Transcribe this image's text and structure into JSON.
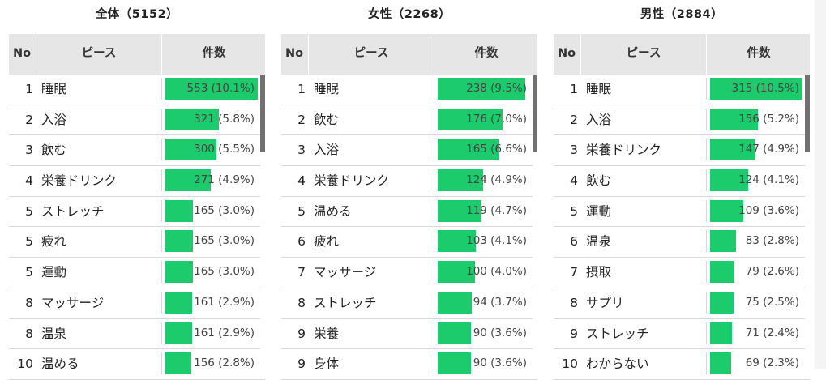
{
  "panels": [
    {
      "title": "全体（5152）",
      "headers": {
        "no": "No",
        "piece": "ピース",
        "count": "件数"
      },
      "rows": [
        {
          "no": "1",
          "piece": "睡眠",
          "count": "553 (10.1%)",
          "share": 0.101
        },
        {
          "no": "2",
          "piece": "入浴",
          "count": "321 (5.8%)",
          "share": 0.058
        },
        {
          "no": "3",
          "piece": "飲む",
          "count": "300 (5.5%)",
          "share": 0.055
        },
        {
          "no": "4",
          "piece": "栄養ドリンク",
          "count": "271 (4.9%)",
          "share": 0.049
        },
        {
          "no": "5",
          "piece": "ストレッチ",
          "count": "165 (3.0%)",
          "share": 0.03
        },
        {
          "no": "5",
          "piece": "疲れ",
          "count": "165 (3.0%)",
          "share": 0.03
        },
        {
          "no": "5",
          "piece": "運動",
          "count": "165 (3.0%)",
          "share": 0.03
        },
        {
          "no": "8",
          "piece": "マッサージ",
          "count": "161 (2.9%)",
          "share": 0.029
        },
        {
          "no": "8",
          "piece": "温泉",
          "count": "161 (2.9%)",
          "share": 0.029
        },
        {
          "no": "10",
          "piece": "温める",
          "count": "156 (2.8%)",
          "share": 0.028
        }
      ]
    },
    {
      "title": "女性（2268）",
      "headers": {
        "no": "No",
        "piece": "ピース",
        "count": "件数"
      },
      "rows": [
        {
          "no": "1",
          "piece": "睡眠",
          "count": "238 (9.5%)",
          "share": 0.095
        },
        {
          "no": "2",
          "piece": "飲む",
          "count": "176 (7.0%)",
          "share": 0.07
        },
        {
          "no": "3",
          "piece": "入浴",
          "count": "165 (6.6%)",
          "share": 0.066
        },
        {
          "no": "4",
          "piece": "栄養ドリンク",
          "count": "124 (4.9%)",
          "share": 0.049
        },
        {
          "no": "5",
          "piece": "温める",
          "count": "119 (4.7%)",
          "share": 0.047
        },
        {
          "no": "6",
          "piece": "疲れ",
          "count": "103 (4.1%)",
          "share": 0.041
        },
        {
          "no": "7",
          "piece": "マッサージ",
          "count": "100 (4.0%)",
          "share": 0.04
        },
        {
          "no": "8",
          "piece": "ストレッチ",
          "count": "94 (3.7%)",
          "share": 0.037
        },
        {
          "no": "9",
          "piece": "栄養",
          "count": "90 (3.6%)",
          "share": 0.036
        },
        {
          "no": "9",
          "piece": "身体",
          "count": "90 (3.6%)",
          "share": 0.036
        }
      ]
    },
    {
      "title": "男性（2884）",
      "headers": {
        "no": "No",
        "piece": "ピース",
        "count": "件数"
      },
      "rows": [
        {
          "no": "1",
          "piece": "睡眠",
          "count": "315 (10.5%)",
          "share": 0.105
        },
        {
          "no": "2",
          "piece": "入浴",
          "count": "156 (5.2%)",
          "share": 0.052
        },
        {
          "no": "3",
          "piece": "栄養ドリンク",
          "count": "147 (4.9%)",
          "share": 0.049
        },
        {
          "no": "4",
          "piece": "飲む",
          "count": "124 (4.1%)",
          "share": 0.041
        },
        {
          "no": "5",
          "piece": "運動",
          "count": "109 (3.6%)",
          "share": 0.036
        },
        {
          "no": "6",
          "piece": "温泉",
          "count": "83 (2.8%)",
          "share": 0.028
        },
        {
          "no": "7",
          "piece": "摂取",
          "count": "79 (2.6%)",
          "share": 0.026
        },
        {
          "no": "8",
          "piece": "サプリ",
          "count": "75 (2.5%)",
          "share": 0.025
        },
        {
          "no": "9",
          "piece": "ストレッチ",
          "count": "71 (2.4%)",
          "share": 0.024
        },
        {
          "no": "10",
          "piece": "わからない",
          "count": "69 (2.3%)",
          "share": 0.023
        }
      ]
    }
  ],
  "colors": {
    "bar": "#1ccb6b",
    "header_bg": "#e6e6e6",
    "scroll_thumb": "#707070"
  },
  "bar_scale_max_share": 0.1
}
